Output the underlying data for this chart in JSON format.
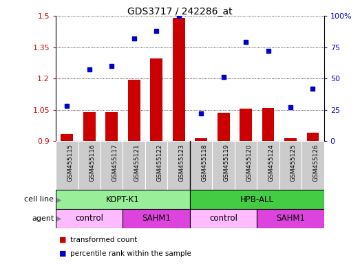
{
  "title": "GDS3717 / 242286_at",
  "samples": [
    "GSM455115",
    "GSM455116",
    "GSM455117",
    "GSM455121",
    "GSM455122",
    "GSM455123",
    "GSM455118",
    "GSM455119",
    "GSM455120",
    "GSM455124",
    "GSM455125",
    "GSM455126"
  ],
  "bar_values": [
    0.935,
    1.04,
    1.04,
    1.195,
    1.295,
    1.49,
    0.915,
    1.035,
    1.055,
    1.06,
    0.915,
    0.94
  ],
  "dot_values": [
    28,
    57,
    60,
    82,
    88,
    100,
    22,
    51,
    79,
    72,
    27,
    42
  ],
  "bar_color": "#cc0000",
  "dot_color": "#0000cc",
  "ylim_left": [
    0.9,
    1.5
  ],
  "ylim_right": [
    0,
    100
  ],
  "yticks_left": [
    0.9,
    1.05,
    1.2,
    1.35,
    1.5
  ],
  "ytick_labels_left": [
    "0.9",
    "1.05",
    "1.2",
    "1.35",
    "1.5"
  ],
  "yticks_right": [
    0,
    25,
    50,
    75,
    100
  ],
  "ytick_labels_right": [
    "0",
    "25",
    "50",
    "75",
    "100%"
  ],
  "cell_line_groups": [
    {
      "label": "KOPT-K1",
      "start": 0,
      "end": 6,
      "color": "#99ee99"
    },
    {
      "label": "HPB-ALL",
      "start": 6,
      "end": 12,
      "color": "#44cc44"
    }
  ],
  "agent_groups": [
    {
      "label": "control",
      "start": 0,
      "end": 3,
      "color": "#ffbbff"
    },
    {
      "label": "SAHM1",
      "start": 3,
      "end": 6,
      "color": "#dd44dd"
    },
    {
      "label": "control",
      "start": 6,
      "end": 9,
      "color": "#ffbbff"
    },
    {
      "label": "SAHM1",
      "start": 9,
      "end": 12,
      "color": "#dd44dd"
    }
  ],
  "legend_bar_label": "transformed count",
  "legend_dot_label": "percentile rank within the sample",
  "cell_line_label": "cell line",
  "agent_label": "agent",
  "background_color": "#ffffff",
  "plot_bg_color": "#ffffff",
  "label_bg_color": "#cccccc",
  "separator_idx": 5.5
}
